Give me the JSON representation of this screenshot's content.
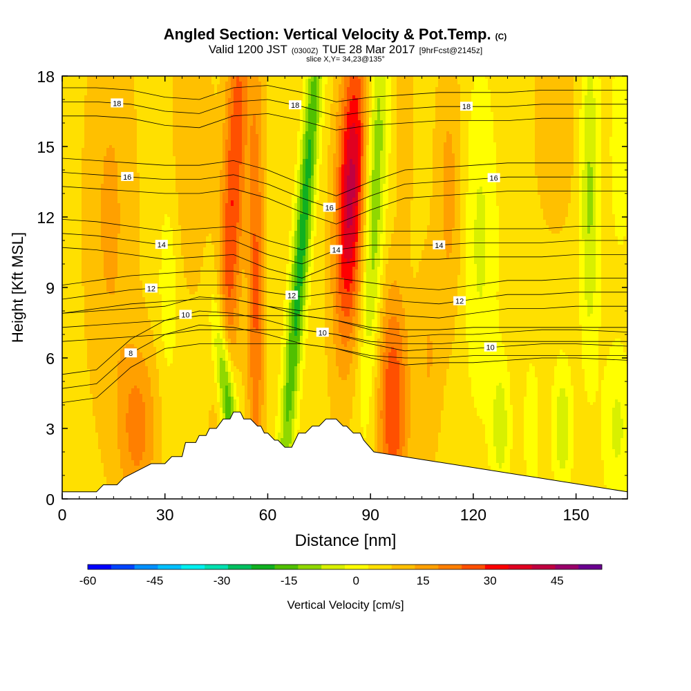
{
  "chart_data": {
    "type": "heatmap",
    "title": "Angled Section: Vertical Velocity & Pot.Temp.",
    "title_units": "(C)",
    "subtitle": {
      "prefix": "Valid 1200 JST",
      "zulu": "(0300Z)",
      "date": "TUE 28 Mar 2017",
      "forecast": "[9hrFcst@2145z]"
    },
    "slice_label": "slice X,Y= 34,23@135°",
    "xlabel": "Distance [nm]",
    "ylabel": "Height [Kft MSL]",
    "xlim": [
      0,
      165
    ],
    "ylim": [
      0,
      18
    ],
    "x_ticks": [
      0,
      30,
      60,
      90,
      120,
      150
    ],
    "x_tick_labels": [
      "0",
      "30",
      "60",
      "90",
      "120",
      "150"
    ],
    "y_ticks": [
      0,
      3,
      6,
      9,
      12,
      15,
      18
    ],
    "y_tick_labels": [
      "0",
      "3",
      "6",
      "9",
      "12",
      "15",
      "18"
    ],
    "colorbar": {
      "label": "Vertical Velocity [cm/s]",
      "min": -60,
      "max": 55,
      "step": 5,
      "tick_values": [
        -60,
        -45,
        -30,
        -15,
        0,
        15,
        30,
        45
      ],
      "tick_labels": [
        "-60",
        "-45",
        "-30",
        "-15",
        "0",
        "15",
        "30",
        "45"
      ],
      "colors": [
        "#0000ff",
        "#0044ff",
        "#0090ff",
        "#00c0ff",
        "#00f0f0",
        "#00e0b0",
        "#00c060",
        "#10b020",
        "#50c000",
        "#90d800",
        "#d8f000",
        "#ffff00",
        "#ffe000",
        "#ffc000",
        "#ffa000",
        "#ff7f00",
        "#ff5000",
        "#ff0000",
        "#e00020",
        "#c00040",
        "#9a006a",
        "#6a0090"
      ]
    },
    "contours": [
      {
        "label": "8",
        "x": [
          0,
          10,
          20,
          30,
          40,
          50,
          60,
          70,
          80,
          90,
          100,
          110,
          120,
          130,
          140,
          150,
          165
        ],
        "y": [
          4.7,
          4.9,
          6.2,
          7.0,
          7.2,
          7.2,
          7.2,
          7.2,
          7.0,
          6.7,
          6.6,
          6.6,
          6.7,
          6.7,
          6.7,
          6.7,
          6.7
        ],
        "labels_at": [
          20
        ]
      },
      {
        "label": "10",
        "x": [
          0,
          10,
          20,
          30,
          40,
          50,
          60,
          70,
          80,
          90,
          100,
          110,
          120,
          130,
          140,
          150,
          165
        ],
        "y": [
          7.3,
          7.4,
          7.5,
          7.6,
          8.0,
          7.9,
          7.6,
          7.2,
          7.0,
          6.6,
          6.3,
          6.4,
          6.4,
          6.5,
          6.6,
          6.6,
          6.5
        ],
        "labels_at": [
          36,
          76,
          125
        ]
      },
      {
        "label": "12",
        "x": [
          0,
          10,
          20,
          30,
          40,
          50,
          60,
          70,
          80,
          90,
          100,
          110,
          120,
          130,
          140,
          150,
          165
        ],
        "y": [
          8.5,
          8.7,
          8.9,
          9.0,
          9.1,
          9.1,
          8.8,
          8.6,
          8.8,
          8.6,
          8.4,
          8.3,
          8.5,
          8.7,
          8.7,
          8.8,
          8.8
        ],
        "labels_at": [
          26,
          67,
          116
        ]
      },
      {
        "label": "14",
        "x": [
          0,
          10,
          20,
          30,
          40,
          50,
          60,
          70,
          80,
          90,
          100,
          110,
          120,
          130,
          140,
          150,
          165
        ],
        "y": [
          11.3,
          11.2,
          11.0,
          10.8,
          10.9,
          11.0,
          10.4,
          10.0,
          10.6,
          10.8,
          10.8,
          10.8,
          10.9,
          10.9,
          10.9,
          11.0,
          11.0
        ],
        "labels_at": [
          29,
          80,
          110
        ]
      },
      {
        "label": "16",
        "x": [
          0,
          10,
          20,
          30,
          40,
          50,
          60,
          70,
          80,
          90,
          100,
          110,
          120,
          130,
          140,
          150,
          165
        ],
        "y": [
          13.9,
          13.8,
          13.7,
          13.6,
          13.6,
          13.8,
          13.4,
          12.8,
          12.3,
          12.9,
          13.4,
          13.5,
          13.6,
          13.7,
          13.7,
          13.7,
          13.7
        ],
        "labels_at": [
          19,
          78,
          126
        ]
      },
      {
        "label": "18",
        "x": [
          0,
          10,
          20,
          30,
          40,
          50,
          60,
          70,
          80,
          90,
          100,
          110,
          120,
          130,
          140,
          150,
          165
        ],
        "y": [
          16.9,
          16.9,
          16.8,
          16.5,
          16.4,
          16.9,
          17.0,
          16.7,
          16.3,
          16.5,
          16.6,
          16.7,
          16.7,
          16.7,
          16.8,
          16.8,
          16.8
        ],
        "labels_at": [
          16,
          68,
          118
        ]
      }
    ],
    "terrain": {
      "x": [
        0,
        10,
        12,
        16,
        18,
        22,
        26,
        30,
        32,
        35,
        36,
        39,
        40,
        42,
        43,
        45,
        47,
        49,
        50,
        52,
        53,
        55,
        57,
        58,
        59,
        60,
        62,
        63,
        65,
        67,
        69,
        71,
        73,
        75,
        77,
        79,
        80,
        82,
        83,
        85,
        87,
        88,
        91,
        165
      ],
      "y": [
        0.3,
        0.3,
        0.6,
        0.6,
        0.9,
        1.2,
        1.5,
        1.5,
        1.8,
        1.8,
        2.4,
        2.4,
        2.7,
        2.7,
        3.0,
        3.0,
        3.4,
        3.4,
        3.7,
        3.7,
        3.4,
        3.4,
        3.1,
        3.1,
        2.8,
        2.8,
        2.5,
        2.5,
        2.2,
        2.2,
        2.8,
        2.8,
        3.1,
        3.1,
        3.4,
        3.4,
        3.4,
        3.1,
        3.1,
        2.8,
        2.8,
        2.5,
        2.0,
        0.3
      ]
    }
  }
}
